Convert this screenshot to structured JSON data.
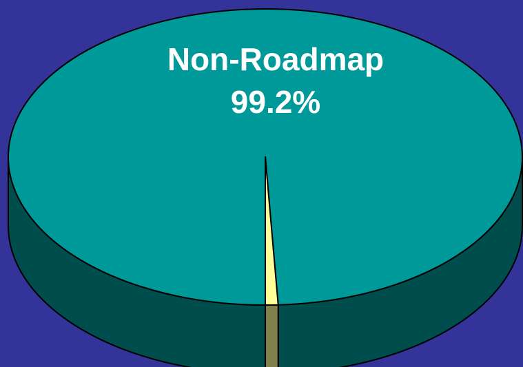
{
  "chart_data": {
    "type": "pie",
    "categories": [
      "Non-Roadmap",
      null
    ],
    "values": [
      99.2,
      0.8
    ],
    "value_labels": [
      "99.2%",
      null
    ],
    "colors": [
      "#009999",
      "#ffff99"
    ]
  }
}
